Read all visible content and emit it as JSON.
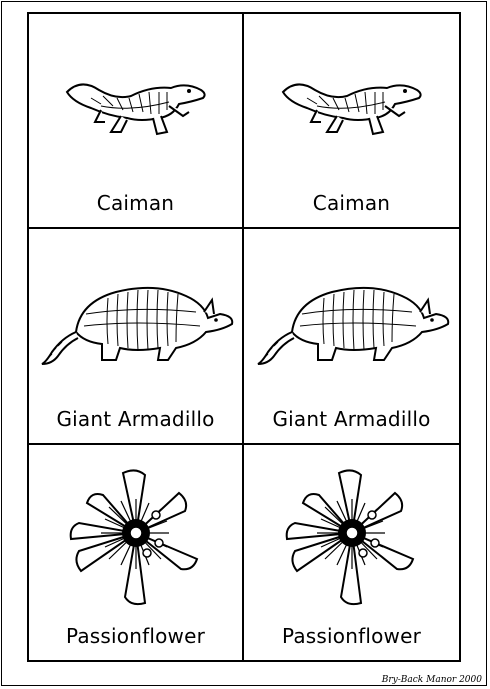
{
  "cards": [
    {
      "row": 0,
      "label": "Caiman",
      "icon": "caiman-illustration"
    },
    {
      "row": 0,
      "label": "Caiman",
      "icon": "caiman-illustration"
    },
    {
      "row": 1,
      "label": "Giant Armadillo",
      "icon": "armadillo-illustration"
    },
    {
      "row": 1,
      "label": "Giant Armadillo",
      "icon": "armadillo-illustration"
    },
    {
      "row": 2,
      "label": "Passionflower",
      "icon": "passionflower-illustration"
    },
    {
      "row": 2,
      "label": "Passionflower",
      "icon": "passionflower-illustration"
    }
  ],
  "credit": "Bry-Back Manor 2000",
  "colors": {
    "ink": "#000000",
    "paper": "#ffffff"
  }
}
